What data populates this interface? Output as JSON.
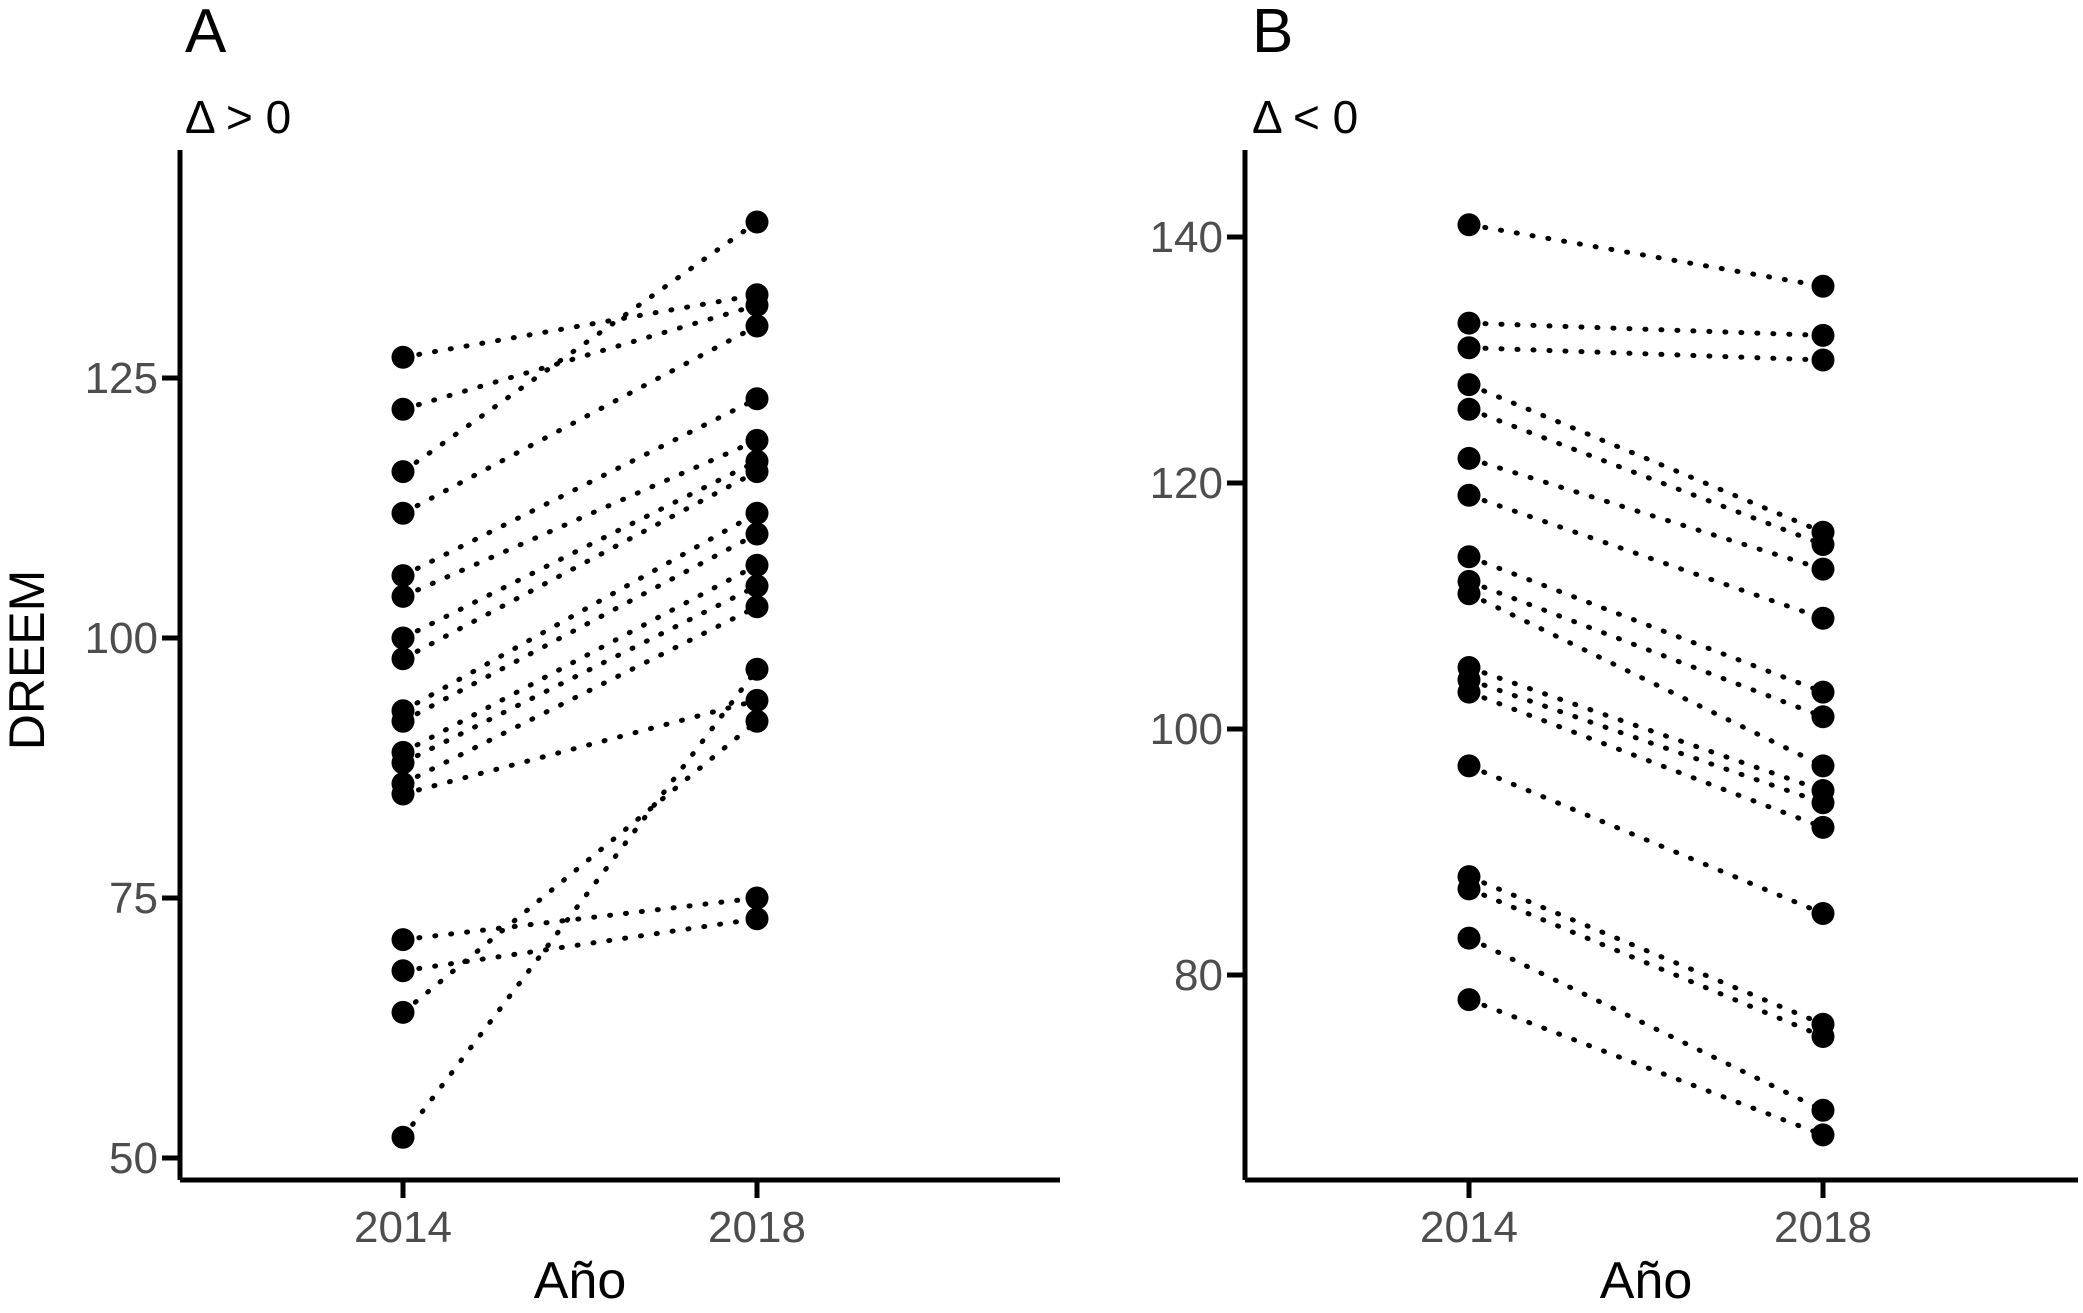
{
  "figure_title": "",
  "chart_data": [
    {
      "type": "scatter",
      "subtype": "paired-slope-plot",
      "tag": "A",
      "subtitle": "Δ > 0",
      "xlabel": "Año",
      "ylabel": "DREEM",
      "categories": [
        "2014",
        "2018"
      ],
      "yticks": [
        50,
        75,
        100,
        125
      ],
      "ylim": [
        48,
        147
      ],
      "grid": false,
      "legend": "none",
      "line_style": "dotted",
      "marker": "filled-circle",
      "series": [
        {
          "name": "pairs_2014_to_2018",
          "pairs": [
            [
              127,
              133
            ],
            [
              122,
              132
            ],
            [
              116,
              140
            ],
            [
              112,
              130
            ],
            [
              106,
              123
            ],
            [
              104,
              119
            ],
            [
              100,
              117
            ],
            [
              98,
              116
            ],
            [
              93,
              112
            ],
            [
              92,
              110
            ],
            [
              89,
              107
            ],
            [
              88,
              105
            ],
            [
              86,
              103
            ],
            [
              85,
              94
            ],
            [
              71,
              75
            ],
            [
              68,
              73
            ],
            [
              64,
              92
            ],
            [
              52,
              97
            ]
          ]
        }
      ],
      "colors": {
        "point": "#000000",
        "line": "#000000",
        "axis": "#000000",
        "tick_label": "#4d4d4d"
      }
    },
    {
      "type": "scatter",
      "subtype": "paired-slope-plot",
      "tag": "B",
      "subtitle": "Δ < 0",
      "xlabel": "Año",
      "ylabel": "",
      "categories": [
        "2014",
        "2018"
      ],
      "yticks": [
        80,
        100,
        120,
        140
      ],
      "ylim": [
        64,
        147
      ],
      "grid": false,
      "legend": "none",
      "line_style": "dotted",
      "marker": "filled-circle",
      "series": [
        {
          "name": "pairs_2014_to_2018",
          "pairs": [
            [
              141,
              136
            ],
            [
              133,
              132
            ],
            [
              131,
              130
            ],
            [
              128,
              116
            ],
            [
              126,
              115
            ],
            [
              122,
              113
            ],
            [
              119,
              109
            ],
            [
              114,
              103
            ],
            [
              112,
              101
            ],
            [
              111,
              97
            ],
            [
              105,
              95
            ],
            [
              104,
              94
            ],
            [
              103,
              92
            ],
            [
              97,
              85
            ],
            [
              88,
              76
            ],
            [
              87,
              75
            ],
            [
              83,
              69
            ],
            [
              78,
              67
            ]
          ]
        }
      ],
      "colors": {
        "point": "#000000",
        "line": "#000000",
        "axis": "#000000",
        "tick_label": "#4d4d4d"
      }
    }
  ]
}
